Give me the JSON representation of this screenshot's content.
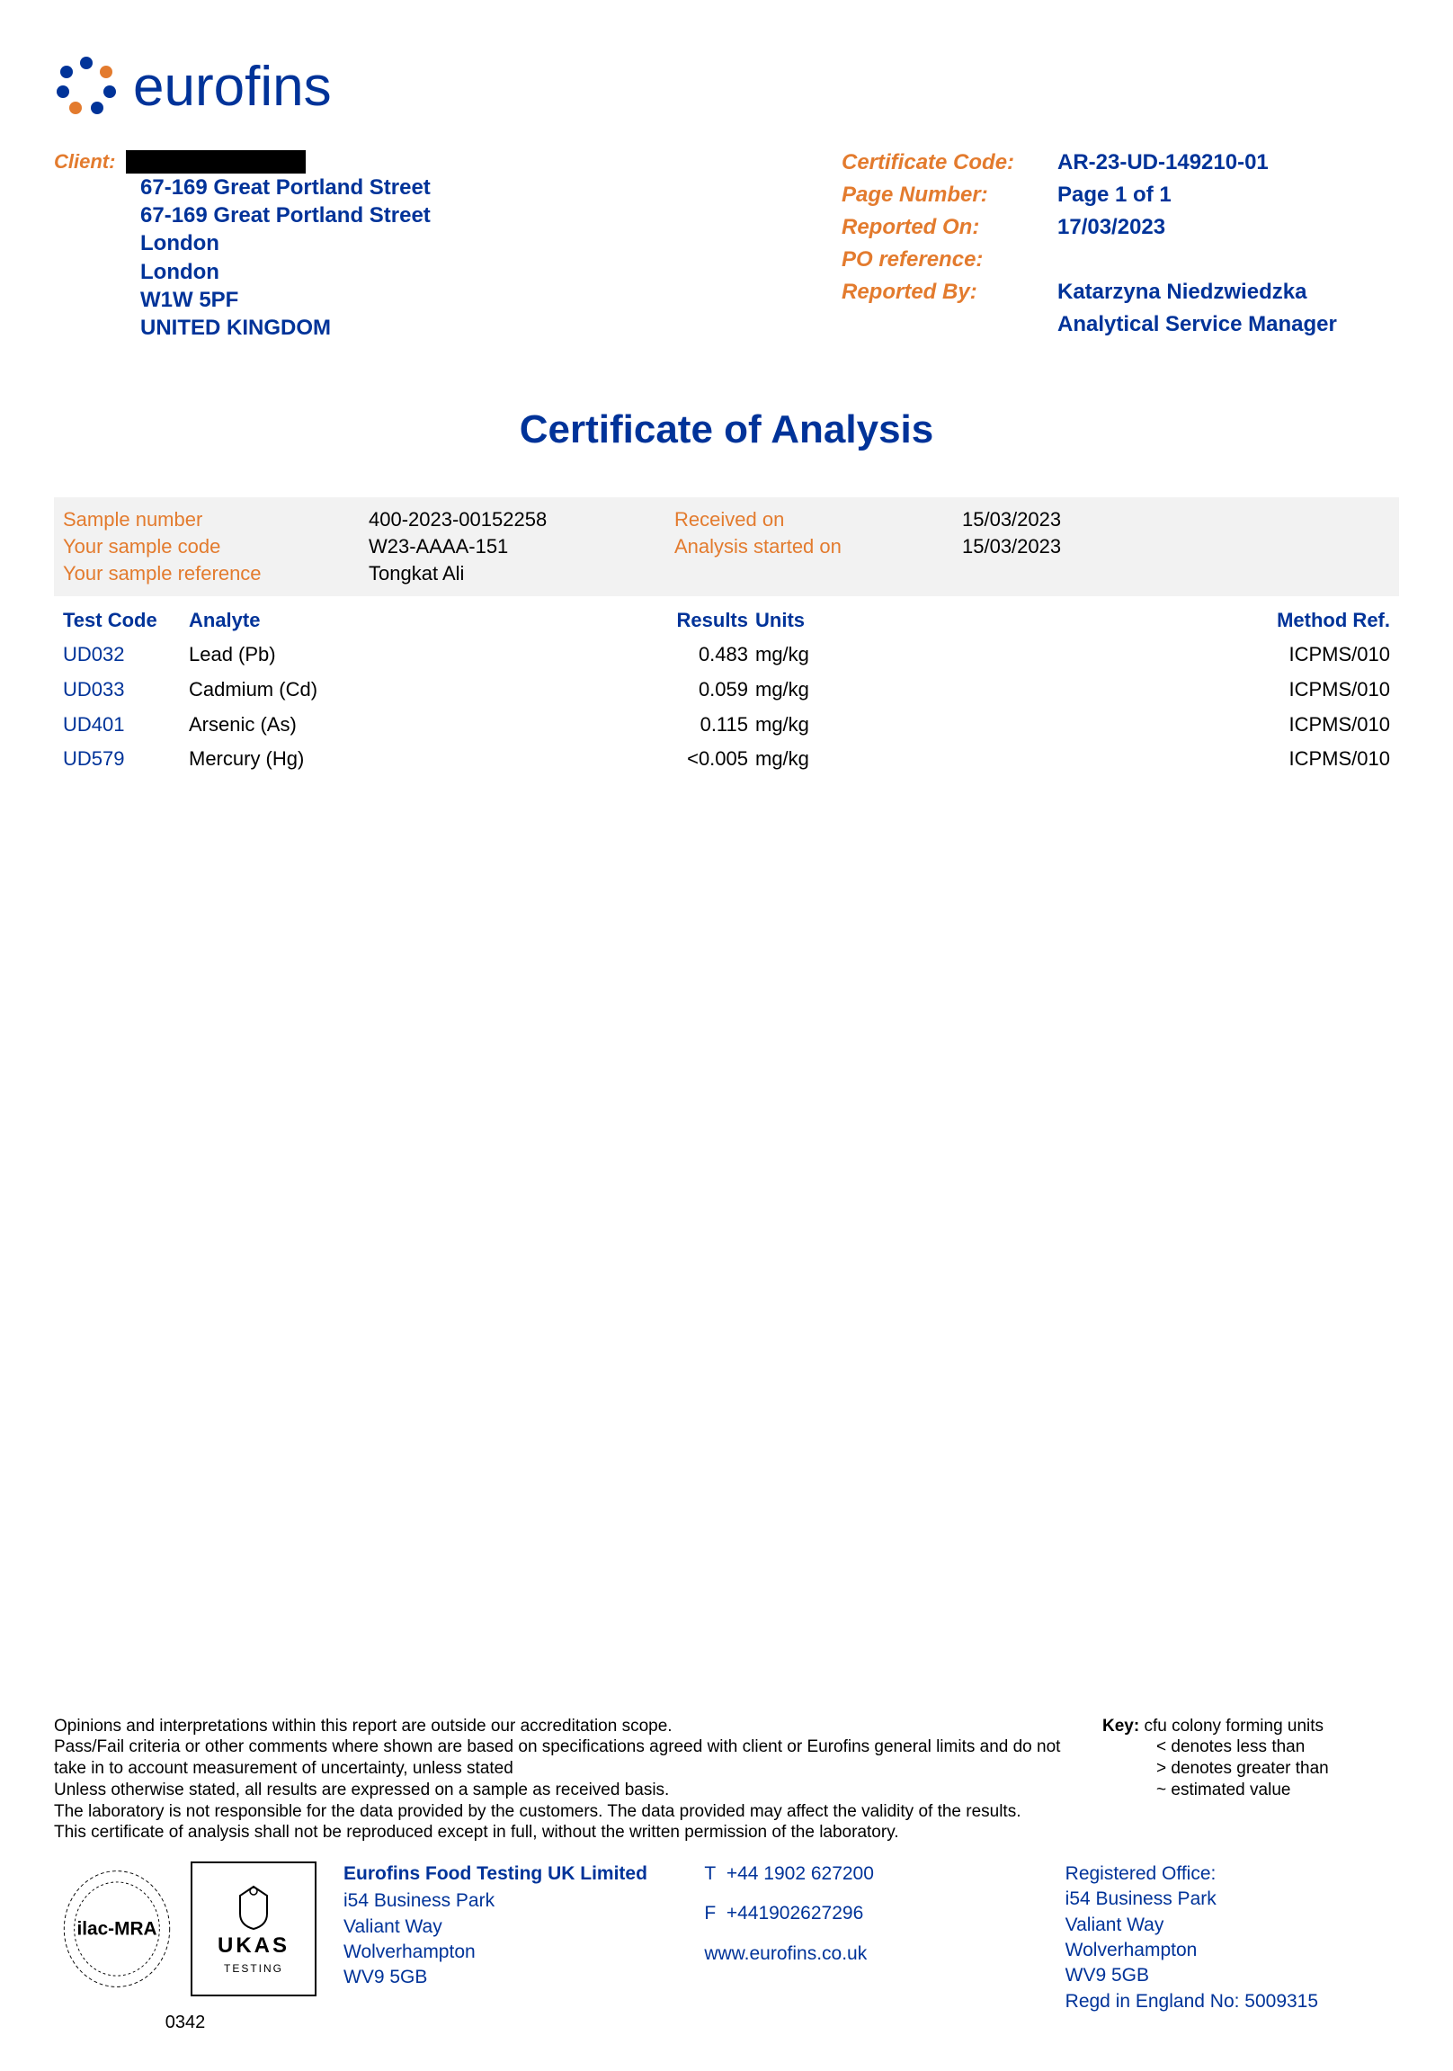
{
  "logo": {
    "text": "eurofins",
    "color": "#003399",
    "dot_colors": [
      "#003399",
      "#003399",
      "#e37b2e",
      "#003399",
      "#003399",
      "#e37b2e",
      "#003399"
    ]
  },
  "client": {
    "label": "Client:",
    "redacted": true,
    "address": [
      "67-169 Great Portland Street",
      "67-169 Great Portland Street",
      "London",
      "London",
      "W1W 5PF",
      "UNITED KINGDOM"
    ]
  },
  "certificate": {
    "code_label": "Certificate Code:",
    "code": "AR-23-UD-149210-01",
    "page_label": "Page Number:",
    "page": "Page 1 of 1",
    "reported_on_label": "Reported On:",
    "reported_on": "17/03/2023",
    "po_label": "PO reference:",
    "po": "",
    "reported_by_label": "Reported By:",
    "reported_by_name": "Katarzyna Niedzwiedzka",
    "reported_by_title": "Analytical Service Manager"
  },
  "title": "Certificate of Analysis",
  "sample": {
    "number_label": "Sample number",
    "number": "400-2023-00152258",
    "received_label": "Received on",
    "received": "15/03/2023",
    "code_label": "Your sample code",
    "code": "W23-AAAA-151",
    "started_label": "Analysis started on",
    "started": "15/03/2023",
    "ref_label": "Your sample reference",
    "ref": "Tongkat Ali"
  },
  "results": {
    "columns": {
      "test_code": "Test Code",
      "analyte": "Analyte",
      "results": "Results",
      "units": "Units",
      "method": "Method Ref."
    },
    "rows": [
      {
        "code": "UD032",
        "analyte": "Lead (Pb)",
        "result": "0.483",
        "units": "mg/kg",
        "method": "ICPMS/010"
      },
      {
        "code": "UD033",
        "analyte": "Cadmium (Cd)",
        "result": "0.059",
        "units": "mg/kg",
        "method": "ICPMS/010"
      },
      {
        "code": "UD401",
        "analyte": "Arsenic (As)",
        "result": "0.115",
        "units": "mg/kg",
        "method": "ICPMS/010"
      },
      {
        "code": "UD579",
        "analyte": "Mercury (Hg)",
        "result": "<0.005",
        "units": "mg/kg",
        "method": "ICPMS/010"
      }
    ]
  },
  "disclaimer": {
    "lines": [
      "Opinions and interpretations within this report are outside our accreditation scope.",
      "Pass/Fail criteria or other comments where shown are based on specifications agreed with client or Eurofins general limits and do not take in to account measurement of uncertainty, unless stated",
      "Unless otherwise stated, all results are expressed on a sample as received basis.",
      "The laboratory is not responsible for the data provided by the customers. The data provided may affect the validity of the results.",
      "This certificate of analysis shall not be reproduced except in full, without the written permission of the laboratory."
    ],
    "key_label": "Key:",
    "key_items": [
      "cfu colony forming units",
      "< denotes less than",
      "> denotes greater than",
      "~ estimated value"
    ]
  },
  "footer": {
    "ukas_number": "0342",
    "ilac_text": "ilac-MRA",
    "ukas_text": "UKAS",
    "ukas_sub": "TESTING",
    "company": {
      "name": "Eurofins Food Testing UK Limited",
      "addr": [
        "i54 Business Park",
        "Valiant Way",
        "Wolverhampton",
        "WV9 5GB"
      ]
    },
    "contact": {
      "tel_label": "T",
      "tel": "+44 1902 627200",
      "fax_label": "F",
      "fax": "+441902627296",
      "web": "www.eurofins.co.uk"
    },
    "registered": {
      "label": "Registered Office:",
      "addr": [
        "i54 Business Park",
        "Valiant Way",
        "Wolverhampton",
        "WV9 5GB"
      ],
      "regno": "Regd in England No: 5009315"
    }
  },
  "colors": {
    "brand_blue": "#003399",
    "accent_orange": "#e37b2e",
    "bg_grey": "#f2f2f2"
  }
}
